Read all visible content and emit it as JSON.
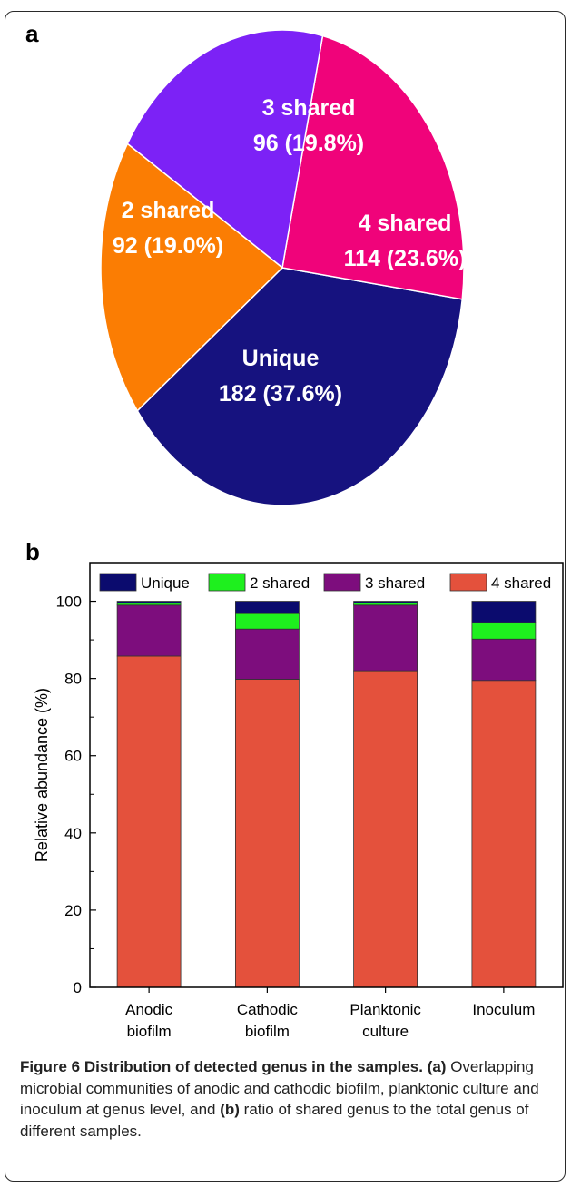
{
  "panels": {
    "a": "a",
    "b": "b"
  },
  "chart_data": [
    {
      "type": "pie",
      "slices": [
        {
          "name": "Unique",
          "value": 182,
          "percent": "37.6%",
          "label_line1": "Unique",
          "label_line2": "182 (37.6%)",
          "color": "#16127f"
        },
        {
          "name": "4 shared",
          "value": 114,
          "percent": "23.6%",
          "label_line1": "4 shared",
          "label_line2": "114 (23.6%)",
          "color": "#f0037a"
        },
        {
          "name": "3 shared",
          "value": 96,
          "percent": "19.8%",
          "label_line1": "3 shared",
          "label_line2": "96 (19.8%)",
          "color": "#7c22f6"
        },
        {
          "name": "2 shared",
          "value": 92,
          "percent": "19.0%",
          "label_line1": "2 shared",
          "label_line2": "92 (19.0%)",
          "color": "#fb7d03"
        }
      ]
    },
    {
      "type": "bar",
      "stacked": true,
      "categories": [
        {
          "line1": "Anodic",
          "line2": "biofilm"
        },
        {
          "line1": "Cathodic",
          "line2": "biofilm"
        },
        {
          "line1": "Planktonic",
          "line2": "culture"
        },
        {
          "line1": "Inoculum",
          "line2": ""
        }
      ],
      "series": [
        {
          "name": "4 shared",
          "color": "#e4513c",
          "values": [
            85.8,
            79.8,
            82.0,
            79.5
          ]
        },
        {
          "name": "3 shared",
          "color": "#7d0d7d",
          "values": [
            13.2,
            13.0,
            17.0,
            10.7
          ]
        },
        {
          "name": "2 shared",
          "color": "#1ef01e",
          "values": [
            0.5,
            4.0,
            0.6,
            4.3
          ]
        },
        {
          "name": "Unique",
          "color": "#0b0b6e",
          "values": [
            0.5,
            3.2,
            0.4,
            5.5
          ]
        }
      ],
      "legend_order": [
        "Unique",
        "2 shared",
        "3 shared",
        "4 shared"
      ],
      "legend_position": "top",
      "ylabel": "Relative abundance (%)",
      "ylim": [
        0,
        110
      ],
      "yticks": [
        0,
        20,
        40,
        60,
        80,
        100
      ],
      "grid": false
    }
  ],
  "caption": {
    "title": "Figure 6 Distribution of detected genus in the samples.",
    "part_a": "(a)",
    "text1": "Overlapping microbial communities of anodic and cathodic biofilm, planktonic culture and inoculum at genus level, and",
    "part_b": "(b)",
    "text2": "ratio of shared genus to the total genus of different samples."
  }
}
